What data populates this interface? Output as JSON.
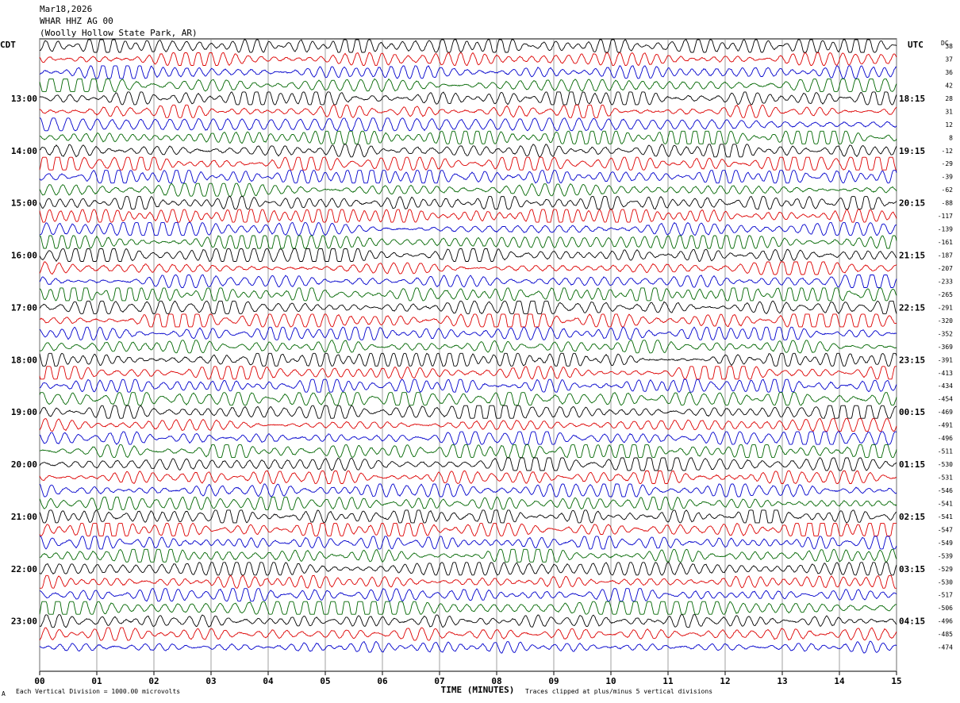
{
  "header": {
    "date": "Mar18,2026",
    "station": "WHAR HHZ AG 00",
    "location": "(Woolly Hollow State Park, AR)"
  },
  "left_tz": "CDT",
  "right_tz": "UTC",
  "dc_label": "DC",
  "footer": {
    "scale_note": "Each Vertical Division = 1000.00 microvolts",
    "clip_note": "Traces clipped at plus/minus 5 vertical divisions",
    "mark": "A"
  },
  "colors": {
    "trace_cycle": [
      "#000000",
      "#dd0000",
      "#0000cc",
      "#006600"
    ],
    "grid": "#888888"
  },
  "chart_data": {
    "type": "line",
    "xlabel": "TIME (MINUTES)",
    "x_ticks": [
      "00",
      "01",
      "02",
      "03",
      "04",
      "05",
      "06",
      "07",
      "08",
      "09",
      "10",
      "11",
      "12",
      "13",
      "14",
      "15"
    ],
    "xlim": [
      0,
      15
    ],
    "rows_per_hour": 4,
    "left_hour_labels": [
      "13:00",
      "14:00",
      "15:00",
      "16:00",
      "17:00",
      "18:00",
      "19:00",
      "20:00",
      "21:00",
      "22:00",
      "23:00"
    ],
    "right_hour_labels": [
      "18:15",
      "19:15",
      "20:15",
      "21:15",
      "22:15",
      "23:15",
      "00:15",
      "01:15",
      "02:15",
      "03:15",
      "04:15"
    ],
    "dc_offsets": [
      38,
      37,
      36,
      42,
      28,
      31,
      12,
      8,
      -12,
      -29,
      -39,
      -62,
      -88,
      -117,
      -139,
      -161,
      -187,
      -207,
      -233,
      -265,
      -291,
      -320,
      -352,
      -369,
      -391,
      -413,
      -434,
      -454,
      -469,
      -491,
      -496,
      -511,
      -530,
      -531,
      -546,
      -541,
      -541,
      -547,
      -549,
      -539,
      -529,
      -530,
      -517,
      -506,
      -496,
      -485,
      -474
    ]
  }
}
